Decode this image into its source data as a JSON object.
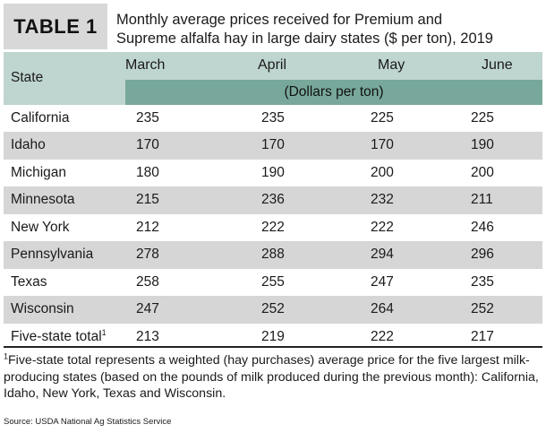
{
  "header": {
    "table_label": "TABLE 1",
    "title_line1": "Monthly average prices received for Premium and",
    "title_line2": "Supreme alfalfa hay in large dairy states ($ per ton), 2019"
  },
  "table": {
    "state_header": "State",
    "months": [
      "March",
      "April",
      "May",
      "June"
    ],
    "unit_label": "(Dollars per ton)",
    "rows": [
      {
        "state": "California",
        "values": [
          "235",
          "235",
          "225",
          "225"
        ]
      },
      {
        "state": "Idaho",
        "values": [
          "170",
          "170",
          "170",
          "190"
        ]
      },
      {
        "state": "Michigan",
        "values": [
          "180",
          "190",
          "200",
          "200"
        ]
      },
      {
        "state": "Minnesota",
        "values": [
          "215",
          "236",
          "232",
          "211"
        ]
      },
      {
        "state": "New York",
        "values": [
          "212",
          "222",
          "222",
          "246"
        ]
      },
      {
        "state": "Pennsylvania",
        "values": [
          "278",
          "288",
          "294",
          "296"
        ]
      },
      {
        "state": "Texas",
        "values": [
          "258",
          "255",
          "247",
          "235"
        ]
      },
      {
        "state": "Wisconsin",
        "values": [
          "247",
          "252",
          "264",
          "252"
        ]
      }
    ],
    "total": {
      "state": "Five-state total",
      "marker": "1",
      "values": [
        "213",
        "219",
        "222",
        "217"
      ]
    }
  },
  "footnote": {
    "marker": "1",
    "text": "Five-state total represents a weighted (hay purchases) average price for the five largest milk-producing states (based on the pounds of milk produced during the previous month): California, Idaho, New York, Texas and Wisconsin."
  },
  "source": "Source: USDA National Ag Statistics Service",
  "colors": {
    "header_light": "#bfd5cf",
    "header_dark": "#78a89b",
    "row_alt": "#d6d6d6",
    "tag_bg": "#d8d8d8"
  }
}
